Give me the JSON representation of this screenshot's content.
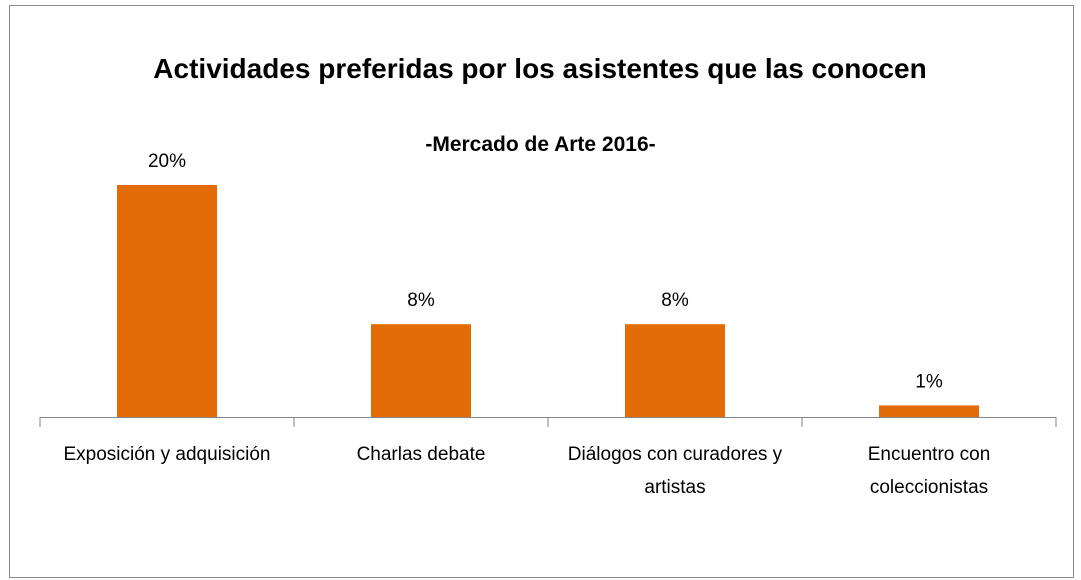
{
  "chart_data": {
    "type": "bar",
    "title": "Actividades preferidas por los asistentes que las conocen",
    "subtitle": "-Mercado de Arte 2016-",
    "categories": [
      "Exposición y adquisición",
      "Charlas debate",
      "Diálogos con curadores y artistas",
      "Encuentro con coleccionistas"
    ],
    "values": [
      20,
      8,
      8,
      1
    ],
    "value_labels": [
      "20%",
      "8%",
      "8%",
      "1%"
    ],
    "color": "#e36c09"
  }
}
